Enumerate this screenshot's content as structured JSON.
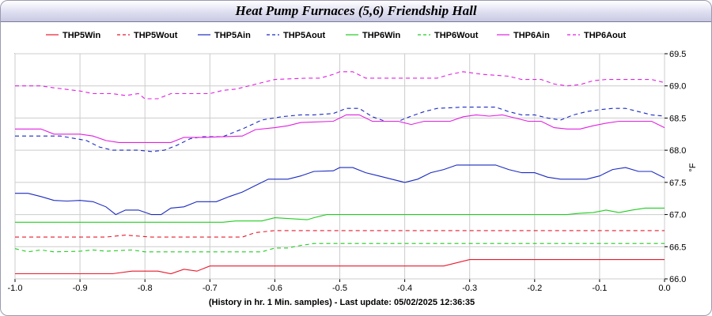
{
  "chart_data": {
    "type": "line",
    "title": "Heat Pump Furnaces (5,6) Friendship Hall",
    "xlabel": "(History in hr. 1 Min. samples) - Last update: 05/02/2025 12:36:35",
    "ylabel": "°F",
    "xlim": [
      -1.0,
      0.0
    ],
    "ylim": [
      66.0,
      69.5
    ],
    "x_ticks": [
      "-1.0",
      "-0.9",
      "-0.8",
      "-0.7",
      "-0.6",
      "-0.5",
      "-0.4",
      "-0.3",
      "-0.2",
      "-0.1",
      "0.0"
    ],
    "y_ticks": [
      "66.0",
      "66.5",
      "67.0",
      "67.5",
      "68.0",
      "68.5",
      "69.0",
      "69.5"
    ],
    "grid": true,
    "legend_position": "top",
    "series": [
      {
        "name": "THP5Win",
        "color": "#e8192c",
        "dash": "solid",
        "points": [
          [
            -1.0,
            66.08
          ],
          [
            -0.85,
            66.08
          ],
          [
            -0.82,
            66.12
          ],
          [
            -0.78,
            66.12
          ],
          [
            -0.76,
            66.08
          ],
          [
            -0.74,
            66.15
          ],
          [
            -0.72,
            66.12
          ],
          [
            -0.7,
            66.2
          ],
          [
            -0.34,
            66.2
          ],
          [
            -0.3,
            66.3
          ],
          [
            0.0,
            66.3
          ]
        ]
      },
      {
        "name": "THP5Wout",
        "color": "#e8192c",
        "dash": "dashed",
        "points": [
          [
            -1.0,
            66.65
          ],
          [
            -0.86,
            66.65
          ],
          [
            -0.83,
            66.68
          ],
          [
            -0.79,
            66.65
          ],
          [
            -0.65,
            66.65
          ],
          [
            -0.63,
            66.72
          ],
          [
            -0.6,
            66.75
          ],
          [
            0.0,
            66.75
          ]
        ]
      },
      {
        "name": "THP5Ain",
        "color": "#1a2ac0",
        "dash": "solid",
        "points": [
          [
            -1.0,
            67.33
          ],
          [
            -0.98,
            67.33
          ],
          [
            -0.96,
            67.28
          ],
          [
            -0.94,
            67.22
          ],
          [
            -0.92,
            67.21
          ],
          [
            -0.9,
            67.22
          ],
          [
            -0.88,
            67.2
          ],
          [
            -0.86,
            67.12
          ],
          [
            -0.845,
            67.0
          ],
          [
            -0.83,
            67.07
          ],
          [
            -0.81,
            67.07
          ],
          [
            -0.79,
            67.0
          ],
          [
            -0.775,
            67.0
          ],
          [
            -0.76,
            67.1
          ],
          [
            -0.74,
            67.12
          ],
          [
            -0.72,
            67.2
          ],
          [
            -0.69,
            67.2
          ],
          [
            -0.67,
            67.28
          ],
          [
            -0.65,
            67.35
          ],
          [
            -0.63,
            67.45
          ],
          [
            -0.61,
            67.55
          ],
          [
            -0.58,
            67.55
          ],
          [
            -0.56,
            67.6
          ],
          [
            -0.54,
            67.67
          ],
          [
            -0.51,
            67.68
          ],
          [
            -0.5,
            67.73
          ],
          [
            -0.48,
            67.73
          ],
          [
            -0.46,
            67.65
          ],
          [
            -0.44,
            67.6
          ],
          [
            -0.42,
            67.55
          ],
          [
            -0.4,
            67.5
          ],
          [
            -0.38,
            67.55
          ],
          [
            -0.36,
            67.65
          ],
          [
            -0.34,
            67.7
          ],
          [
            -0.32,
            67.77
          ],
          [
            -0.26,
            67.77
          ],
          [
            -0.24,
            67.7
          ],
          [
            -0.22,
            67.65
          ],
          [
            -0.2,
            67.65
          ],
          [
            -0.18,
            67.58
          ],
          [
            -0.16,
            67.55
          ],
          [
            -0.12,
            67.55
          ],
          [
            -0.1,
            67.6
          ],
          [
            -0.08,
            67.7
          ],
          [
            -0.06,
            67.73
          ],
          [
            -0.04,
            67.67
          ],
          [
            -0.02,
            67.67
          ],
          [
            0.0,
            67.57
          ]
        ]
      },
      {
        "name": "THP5Aout",
        "color": "#1a2ac0",
        "dash": "dashed",
        "points": [
          [
            -1.0,
            68.22
          ],
          [
            -0.93,
            68.22
          ],
          [
            -0.89,
            68.15
          ],
          [
            -0.87,
            68.05
          ],
          [
            -0.85,
            68.0
          ],
          [
            -0.81,
            68.0
          ],
          [
            -0.79,
            67.98
          ],
          [
            -0.77,
            68.0
          ],
          [
            -0.75,
            68.08
          ],
          [
            -0.73,
            68.18
          ],
          [
            -0.71,
            68.21
          ],
          [
            -0.68,
            68.21
          ],
          [
            -0.65,
            68.33
          ],
          [
            -0.62,
            68.47
          ],
          [
            -0.59,
            68.52
          ],
          [
            -0.56,
            68.55
          ],
          [
            -0.54,
            68.55
          ],
          [
            -0.51,
            68.57
          ],
          [
            -0.49,
            68.65
          ],
          [
            -0.47,
            68.65
          ],
          [
            -0.45,
            68.52
          ],
          [
            -0.43,
            68.45
          ],
          [
            -0.41,
            68.45
          ],
          [
            -0.39,
            68.53
          ],
          [
            -0.37,
            68.6
          ],
          [
            -0.35,
            68.65
          ],
          [
            -0.31,
            68.67
          ],
          [
            -0.28,
            68.67
          ],
          [
            -0.26,
            68.67
          ],
          [
            -0.24,
            68.6
          ],
          [
            -0.22,
            68.55
          ],
          [
            -0.2,
            68.55
          ],
          [
            -0.18,
            68.5
          ],
          [
            -0.16,
            68.47
          ],
          [
            -0.14,
            68.55
          ],
          [
            -0.12,
            68.6
          ],
          [
            -0.1,
            68.63
          ],
          [
            -0.08,
            68.65
          ],
          [
            -0.06,
            68.65
          ],
          [
            -0.04,
            68.6
          ],
          [
            -0.02,
            68.55
          ],
          [
            0.0,
            68.53
          ]
        ]
      },
      {
        "name": "THP6Win",
        "color": "#22cc22",
        "dash": "solid",
        "points": [
          [
            -1.0,
            66.88
          ],
          [
            -0.68,
            66.88
          ],
          [
            -0.66,
            66.9
          ],
          [
            -0.62,
            66.9
          ],
          [
            -0.6,
            66.95
          ],
          [
            -0.55,
            66.92
          ],
          [
            -0.54,
            66.95
          ],
          [
            -0.52,
            67.0
          ],
          [
            -0.15,
            67.0
          ],
          [
            -0.13,
            67.02
          ],
          [
            -0.11,
            67.03
          ],
          [
            -0.09,
            67.07
          ],
          [
            -0.07,
            67.03
          ],
          [
            -0.05,
            67.07
          ],
          [
            -0.03,
            67.1
          ],
          [
            0.0,
            67.1
          ]
        ]
      },
      {
        "name": "THP6Wout",
        "color": "#22cc22",
        "dash": "dashed",
        "points": [
          [
            -1.0,
            66.47
          ],
          [
            -0.98,
            66.42
          ],
          [
            -0.96,
            66.45
          ],
          [
            -0.94,
            66.42
          ],
          [
            -0.9,
            66.43
          ],
          [
            -0.88,
            66.45
          ],
          [
            -0.86,
            66.43
          ],
          [
            -0.82,
            66.45
          ],
          [
            -0.8,
            66.42
          ],
          [
            -0.62,
            66.42
          ],
          [
            -0.6,
            66.48
          ],
          [
            -0.58,
            66.48
          ],
          [
            -0.56,
            66.52
          ],
          [
            -0.54,
            66.55
          ],
          [
            0.0,
            66.55
          ]
        ]
      },
      {
        "name": "THP6Ain",
        "color": "#e020e0",
        "dash": "solid",
        "points": [
          [
            -1.0,
            68.33
          ],
          [
            -0.96,
            68.33
          ],
          [
            -0.94,
            68.25
          ],
          [
            -0.9,
            68.25
          ],
          [
            -0.88,
            68.22
          ],
          [
            -0.86,
            68.15
          ],
          [
            -0.84,
            68.12
          ],
          [
            -0.76,
            68.12
          ],
          [
            -0.74,
            68.2
          ],
          [
            -0.71,
            68.2
          ],
          [
            -0.65,
            68.22
          ],
          [
            -0.63,
            68.32
          ],
          [
            -0.6,
            68.35
          ],
          [
            -0.58,
            68.38
          ],
          [
            -0.56,
            68.43
          ],
          [
            -0.51,
            68.45
          ],
          [
            -0.49,
            68.55
          ],
          [
            -0.47,
            68.55
          ],
          [
            -0.45,
            68.45
          ],
          [
            -0.41,
            68.45
          ],
          [
            -0.39,
            68.4
          ],
          [
            -0.37,
            68.45
          ],
          [
            -0.33,
            68.45
          ],
          [
            -0.31,
            68.52
          ],
          [
            -0.29,
            68.55
          ],
          [
            -0.27,
            68.53
          ],
          [
            -0.25,
            68.55
          ],
          [
            -0.23,
            68.5
          ],
          [
            -0.21,
            68.45
          ],
          [
            -0.19,
            68.45
          ],
          [
            -0.17,
            68.35
          ],
          [
            -0.15,
            68.33
          ],
          [
            -0.13,
            68.33
          ],
          [
            -0.11,
            68.38
          ],
          [
            -0.09,
            68.42
          ],
          [
            -0.07,
            68.45
          ],
          [
            -0.02,
            68.45
          ],
          [
            0.0,
            68.35
          ]
        ]
      },
      {
        "name": "THP6Aout",
        "color": "#e020e0",
        "dash": "dashed",
        "points": [
          [
            -1.0,
            69.0
          ],
          [
            -0.96,
            69.0
          ],
          [
            -0.94,
            68.97
          ],
          [
            -0.9,
            68.92
          ],
          [
            -0.88,
            68.88
          ],
          [
            -0.85,
            68.88
          ],
          [
            -0.83,
            68.85
          ],
          [
            -0.81,
            68.88
          ],
          [
            -0.8,
            68.8
          ],
          [
            -0.78,
            68.8
          ],
          [
            -0.76,
            68.88
          ],
          [
            -0.7,
            68.88
          ],
          [
            -0.68,
            68.93
          ],
          [
            -0.66,
            68.95
          ],
          [
            -0.64,
            69.0
          ],
          [
            -0.62,
            69.05
          ],
          [
            -0.6,
            69.1
          ],
          [
            -0.55,
            69.12
          ],
          [
            -0.53,
            69.12
          ],
          [
            -0.51,
            69.18
          ],
          [
            -0.5,
            69.22
          ],
          [
            -0.48,
            69.22
          ],
          [
            -0.46,
            69.12
          ],
          [
            -0.35,
            69.12
          ],
          [
            -0.33,
            69.18
          ],
          [
            -0.31,
            69.22
          ],
          [
            -0.28,
            69.18
          ],
          [
            -0.24,
            69.15
          ],
          [
            -0.22,
            69.1
          ],
          [
            -0.19,
            69.1
          ],
          [
            -0.17,
            69.03
          ],
          [
            -0.15,
            69.0
          ],
          [
            -0.13,
            69.02
          ],
          [
            -0.11,
            69.08
          ],
          [
            -0.09,
            69.1
          ],
          [
            -0.02,
            69.1
          ],
          [
            0.0,
            69.05
          ]
        ]
      }
    ]
  }
}
